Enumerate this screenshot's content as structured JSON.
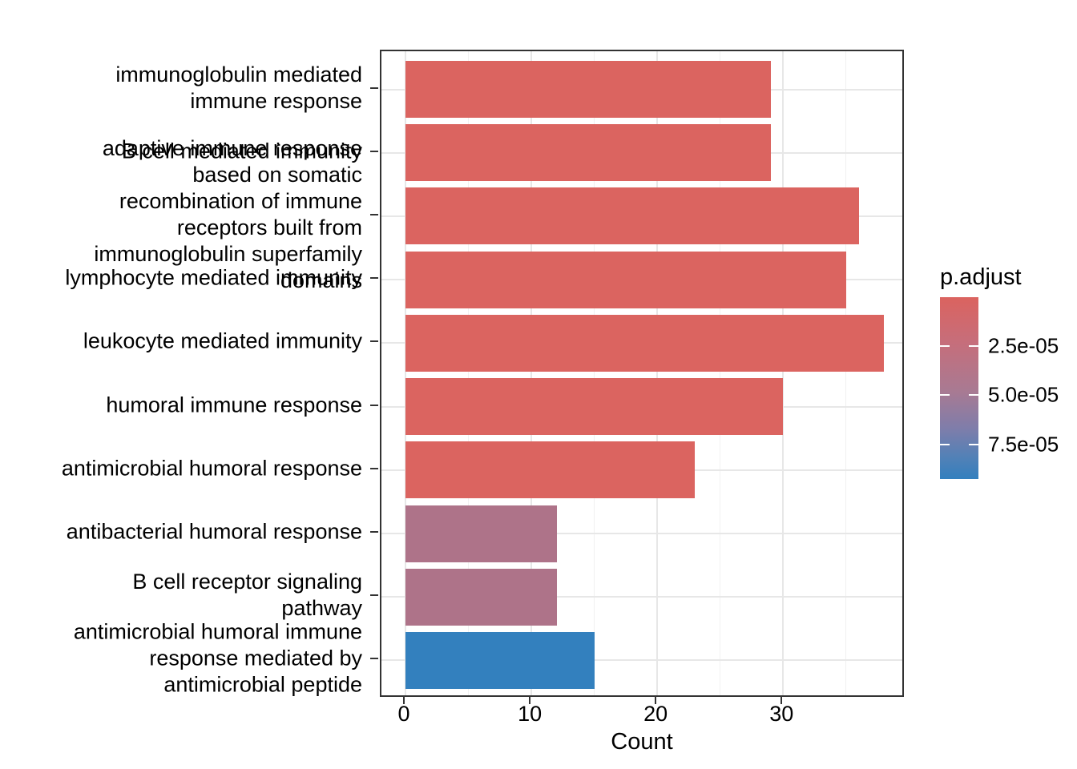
{
  "chart_data": {
    "type": "bar",
    "orientation": "horizontal",
    "title": "",
    "xlabel": "Count",
    "x_ticks": [
      0,
      10,
      20,
      30
    ],
    "x_minor_ticks": [
      5,
      15,
      25,
      35
    ],
    "xlim": [
      0,
      39.7
    ],
    "grid": true,
    "legend_position": "right",
    "categories": [
      "immunoglobulin mediated immune response",
      "B cell mediated immunity",
      "adaptive immune response based on somatic recombination of immune receptors built from immunoglobulin superfamily domains",
      "lymphocyte mediated immunity",
      "leukocyte mediated immunity",
      "humoral immune response",
      "antimicrobial humoral response",
      "antibacterial humoral response",
      "B cell receptor signaling pathway",
      "antimicrobial humoral immune response mediated by antimicrobial peptide"
    ],
    "category_wrapped_lines": [
      [
        "immunoglobulin mediated",
        "immune response"
      ],
      [
        "B cell mediated immunity"
      ],
      [
        "adaptive immune response",
        "based on somatic",
        "recombination of immune",
        "receptors built from",
        "immunoglobulin superfamily",
        "domains"
      ],
      [
        "lymphocyte mediated immunity"
      ],
      [
        "leukocyte mediated immunity"
      ],
      [
        "humoral immune response"
      ],
      [
        "antimicrobial humoral response"
      ],
      [
        "antibacterial humoral response"
      ],
      [
        "B cell receptor signaling",
        "pathway"
      ],
      [
        "antimicrobial humoral immune",
        "response mediated by",
        "antimicrobial peptide"
      ]
    ],
    "series_name": "Count",
    "values": [
      29,
      29,
      36,
      35,
      38,
      30,
      23,
      12,
      12,
      15
    ],
    "bar_colors": [
      "#db6460",
      "#db6460",
      "#db6460",
      "#db6460",
      "#db6460",
      "#db6460",
      "#db6460",
      "#ae7389",
      "#ae7389",
      "#3380be"
    ],
    "legend": {
      "title": "p.adjust",
      "tick_labels": [
        "2.5e-05",
        "5.0e-05",
        "7.5e-05"
      ],
      "gradient_top_color": "#db635f",
      "gradient_mid_color": "#a87a93",
      "gradient_bottom_color": "#3380be",
      "gradient_css_stops": [
        "#db635f 0%",
        "#c66e7b 25%",
        "#a87a93 52%",
        "#7f7daa 72%",
        "#5581b6 87%",
        "#3380be 100%"
      ]
    }
  }
}
